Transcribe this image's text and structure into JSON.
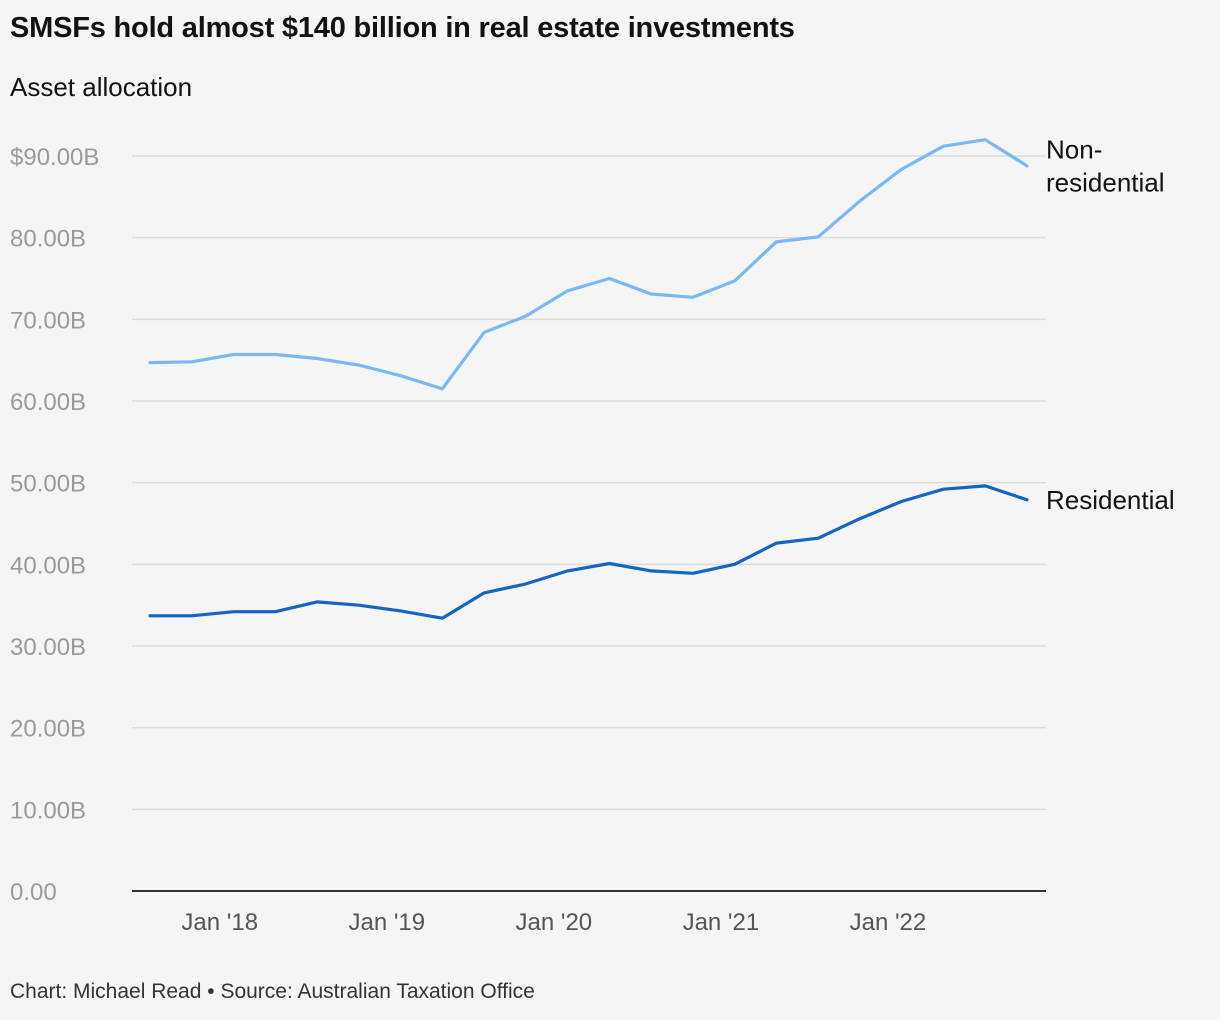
{
  "header": {
    "title": "SMSFs hold almost $140 billion in real estate investments",
    "subtitle": "Asset allocation"
  },
  "footer": {
    "credit": "Chart: Michael Read • Source: Australian Taxation Office"
  },
  "colors": {
    "non_residential": "#7ab7f5",
    "residential": "#1565c0",
    "grid": "#dcdcdc",
    "axis": "#333333"
  },
  "chart_data": {
    "type": "line",
    "xlabel": "",
    "ylabel": "",
    "x": [
      "Jun '17",
      "Sep '17",
      "Dec '17",
      "Mar '18",
      "Jun '18",
      "Sep '18",
      "Dec '18",
      "Mar '19",
      "Jun '19",
      "Sep '19",
      "Dec '19",
      "Mar '20",
      "Jun '20",
      "Sep '20",
      "Dec '20",
      "Mar '21",
      "Jun '21",
      "Sep '21",
      "Dec '21",
      "Mar '22",
      "Jun '22",
      "Sep '22"
    ],
    "x_tick_labels": [
      {
        "label": "Jan '18",
        "index": 1.67
      },
      {
        "label": "Jan '19",
        "index": 5.67
      },
      {
        "label": "Jan '20",
        "index": 9.67
      },
      {
        "label": "Jan '21",
        "index": 13.67
      },
      {
        "label": "Jan '22",
        "index": 17.67
      }
    ],
    "y_ticks": [
      {
        "value": 0,
        "label": "0.00"
      },
      {
        "value": 10,
        "label": "10.00B"
      },
      {
        "value": 20,
        "label": "20.00B"
      },
      {
        "value": 30,
        "label": "30.00B"
      },
      {
        "value": 40,
        "label": "40.00B"
      },
      {
        "value": 50,
        "label": "50.00B"
      },
      {
        "value": 60,
        "label": "60.00B"
      },
      {
        "value": 70,
        "label": "70.00B"
      },
      {
        "value": 80,
        "label": "80.00B"
      },
      {
        "value": 90,
        "label": "$90.00B"
      }
    ],
    "ylim": [
      0,
      90
    ],
    "grid": true,
    "series": [
      {
        "key": "non_residential",
        "name": "Non-residential",
        "label_lines": [
          "Non-",
          "residential"
        ],
        "values": [
          64.7,
          64.8,
          65.7,
          65.7,
          65.2,
          64.4,
          63.1,
          61.5,
          68.4,
          70.4,
          73.5,
          75.0,
          73.1,
          72.7,
          74.7,
          79.5,
          80.1,
          84.5,
          88.4,
          91.2,
          92.0,
          88.8
        ]
      },
      {
        "key": "residential",
        "name": "Residential",
        "label_lines": [
          "Residential"
        ],
        "values": [
          33.7,
          33.7,
          34.2,
          34.2,
          35.4,
          35.0,
          34.3,
          33.4,
          36.5,
          37.6,
          39.2,
          40.1,
          39.2,
          38.9,
          40.0,
          42.6,
          43.2,
          45.6,
          47.7,
          49.2,
          49.6,
          47.9
        ]
      }
    ]
  }
}
